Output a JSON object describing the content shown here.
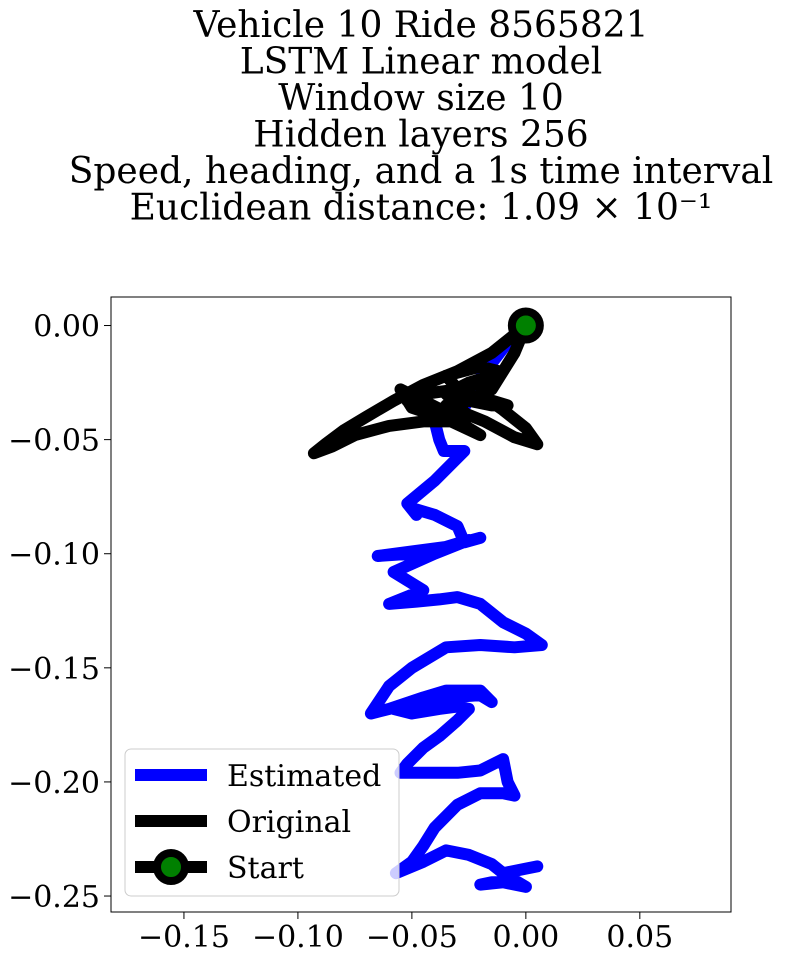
{
  "chart_data": {
    "type": "line",
    "title_lines": [
      "Vehicle 10 Ride 8565821",
      "LSTM Linear model",
      "Window size 10",
      "Hidden layers 256",
      "Speed, heading, and a 1s time interval",
      "Euclidean distance: 1.09 × 10⁻¹"
    ],
    "xlabel": "",
    "ylabel": "",
    "xlim": [
      -0.182,
      0.09
    ],
    "ylim": [
      -0.257,
      0.0125
    ],
    "grid": false,
    "legend_position": "lower-left",
    "x_ticks": [
      {
        "value": -0.15,
        "label": "−0.15"
      },
      {
        "value": -0.1,
        "label": "−0.10"
      },
      {
        "value": -0.05,
        "label": "−0.05"
      },
      {
        "value": 0.0,
        "label": "0.00"
      },
      {
        "value": 0.05,
        "label": "0.05"
      }
    ],
    "y_ticks": [
      {
        "value": 0.0,
        "label": "0.00"
      },
      {
        "value": -0.05,
        "label": "−0.05"
      },
      {
        "value": -0.1,
        "label": "−0.10"
      },
      {
        "value": -0.15,
        "label": "−0.15"
      },
      {
        "value": -0.2,
        "label": "−0.20"
      },
      {
        "value": -0.25,
        "label": "−0.25"
      }
    ],
    "series": [
      {
        "name": "Estimated",
        "color": "#0000ff",
        "points": [
          [
            0.0,
            0.0
          ],
          [
            -0.01,
            -0.01
          ],
          [
            -0.02,
            -0.023
          ],
          [
            -0.025,
            -0.032
          ],
          [
            -0.028,
            -0.038
          ],
          [
            -0.04,
            -0.042
          ],
          [
            -0.038,
            -0.05
          ],
          [
            -0.036,
            -0.055
          ],
          [
            -0.027,
            -0.055
          ],
          [
            -0.04,
            -0.068
          ],
          [
            -0.052,
            -0.078
          ],
          [
            -0.048,
            -0.083
          ],
          [
            -0.05,
            -0.08
          ],
          [
            -0.04,
            -0.083
          ],
          [
            -0.03,
            -0.088
          ],
          [
            -0.027,
            -0.095
          ],
          [
            -0.02,
            -0.093
          ],
          [
            -0.035,
            -0.097
          ],
          [
            -0.05,
            -0.1
          ],
          [
            -0.065,
            -0.101
          ],
          [
            -0.05,
            -0.099
          ],
          [
            -0.035,
            -0.097
          ],
          [
            -0.025,
            -0.094
          ],
          [
            -0.04,
            -0.1
          ],
          [
            -0.058,
            -0.108
          ],
          [
            -0.045,
            -0.116
          ],
          [
            -0.06,
            -0.122
          ],
          [
            -0.048,
            -0.121
          ],
          [
            -0.038,
            -0.12
          ],
          [
            -0.03,
            -0.119
          ],
          [
            -0.02,
            -0.122
          ],
          [
            -0.01,
            -0.13
          ],
          [
            0.0,
            -0.135
          ],
          [
            0.007,
            -0.14
          ],
          [
            -0.005,
            -0.141
          ],
          [
            -0.02,
            -0.14
          ],
          [
            -0.035,
            -0.141
          ],
          [
            -0.05,
            -0.15
          ],
          [
            -0.06,
            -0.158
          ],
          [
            -0.068,
            -0.17
          ],
          [
            -0.06,
            -0.168
          ],
          [
            -0.045,
            -0.163
          ],
          [
            -0.035,
            -0.16
          ],
          [
            -0.02,
            -0.16
          ],
          [
            -0.015,
            -0.165
          ],
          [
            -0.02,
            -0.162
          ],
          [
            -0.035,
            -0.163
          ],
          [
            -0.045,
            -0.166
          ],
          [
            -0.058,
            -0.168
          ],
          [
            -0.05,
            -0.17
          ],
          [
            -0.038,
            -0.168
          ],
          [
            -0.03,
            -0.167
          ],
          [
            -0.025,
            -0.168
          ],
          [
            -0.03,
            -0.173
          ],
          [
            -0.038,
            -0.18
          ],
          [
            -0.045,
            -0.185
          ],
          [
            -0.052,
            -0.192
          ],
          [
            -0.055,
            -0.196
          ],
          [
            -0.045,
            -0.196
          ],
          [
            -0.03,
            -0.196
          ],
          [
            -0.02,
            -0.195
          ],
          [
            -0.01,
            -0.19
          ],
          [
            -0.008,
            -0.2
          ],
          [
            -0.005,
            -0.206
          ],
          [
            -0.01,
            -0.205
          ],
          [
            -0.02,
            -0.205
          ],
          [
            -0.03,
            -0.21
          ],
          [
            -0.04,
            -0.22
          ],
          [
            -0.045,
            -0.228
          ],
          [
            -0.05,
            -0.235
          ],
          [
            -0.057,
            -0.24
          ],
          [
            -0.045,
            -0.235
          ],
          [
            -0.035,
            -0.23
          ],
          [
            -0.025,
            -0.232
          ],
          [
            -0.015,
            -0.236
          ],
          [
            -0.01,
            -0.24
          ],
          [
            -0.005,
            -0.244
          ],
          [
            -0.015,
            -0.244
          ],
          [
            -0.02,
            -0.245
          ],
          [
            -0.01,
            -0.244
          ],
          [
            0.0,
            -0.246
          ],
          [
            -0.005,
            -0.243
          ],
          [
            -0.01,
            -0.24
          ],
          [
            0.0,
            -0.238
          ],
          [
            0.005,
            -0.237
          ]
        ]
      },
      {
        "name": "Original",
        "color": "#000000",
        "points": [
          [
            0.0,
            0.0
          ],
          [
            -0.015,
            -0.012
          ],
          [
            -0.03,
            -0.02
          ],
          [
            -0.045,
            -0.026
          ],
          [
            -0.058,
            -0.033
          ],
          [
            -0.07,
            -0.04
          ],
          [
            -0.08,
            -0.046
          ],
          [
            -0.088,
            -0.052
          ],
          [
            -0.093,
            -0.056
          ],
          [
            -0.085,
            -0.053
          ],
          [
            -0.075,
            -0.048
          ],
          [
            -0.06,
            -0.044
          ],
          [
            -0.045,
            -0.042
          ],
          [
            -0.03,
            -0.042
          ],
          [
            -0.02,
            -0.048
          ],
          [
            -0.035,
            -0.041
          ],
          [
            -0.05,
            -0.036
          ],
          [
            -0.055,
            -0.028
          ],
          [
            -0.045,
            -0.033
          ],
          [
            -0.035,
            -0.038
          ],
          [
            -0.025,
            -0.04
          ],
          [
            -0.03,
            -0.035
          ],
          [
            -0.035,
            -0.03
          ],
          [
            -0.025,
            -0.025
          ],
          [
            -0.015,
            -0.022
          ],
          [
            -0.02,
            -0.03
          ],
          [
            -0.01,
            -0.037
          ],
          [
            0.0,
            -0.045
          ],
          [
            0.005,
            -0.052
          ],
          [
            -0.005,
            -0.049
          ],
          [
            -0.018,
            -0.042
          ],
          [
            -0.028,
            -0.038
          ],
          [
            -0.04,
            -0.036
          ],
          [
            -0.052,
            -0.033
          ],
          [
            -0.045,
            -0.03
          ],
          [
            -0.03,
            -0.028
          ],
          [
            -0.02,
            -0.025
          ],
          [
            -0.012,
            -0.02
          ],
          [
            -0.02,
            -0.018
          ],
          [
            -0.035,
            -0.022
          ],
          [
            -0.028,
            -0.03
          ],
          [
            -0.018,
            -0.032
          ],
          [
            -0.008,
            -0.035
          ],
          [
            -0.015,
            -0.035
          ],
          [
            -0.025,
            -0.033
          ],
          [
            -0.035,
            -0.035
          ],
          [
            -0.025,
            -0.033
          ],
          [
            -0.015,
            -0.028
          ],
          [
            -0.01,
            -0.02
          ],
          [
            -0.005,
            -0.012
          ],
          [
            0.0,
            0.0
          ]
        ]
      }
    ],
    "start": {
      "name": "Start",
      "x": 0.0,
      "y": 0.0,
      "color": "#008000",
      "edge_color": "#000000"
    },
    "legend": [
      {
        "label": "Estimated",
        "color": "#0000ff",
        "marker": false
      },
      {
        "label": "Original",
        "color": "#000000",
        "marker": false
      },
      {
        "label": "Start",
        "color": "#000000",
        "marker": true,
        "marker_color": "#008000"
      }
    ]
  }
}
